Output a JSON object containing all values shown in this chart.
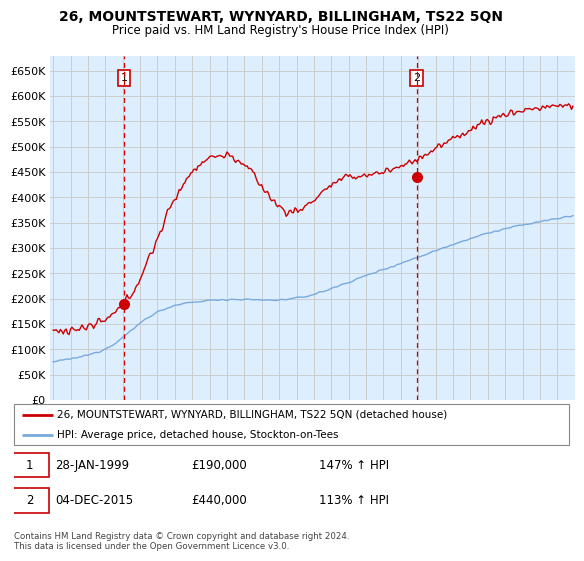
{
  "title": "26, MOUNTSTEWART, WYNYARD, BILLINGHAM, TS22 5QN",
  "subtitle": "Price paid vs. HM Land Registry's House Price Index (HPI)",
  "ylim": [
    0,
    680000
  ],
  "yticks": [
    0,
    50000,
    100000,
    150000,
    200000,
    250000,
    300000,
    350000,
    400000,
    450000,
    500000,
    550000,
    600000,
    650000
  ],
  "xlim_start": 1994.8,
  "xlim_end": 2025.0,
  "sale1_date": 1999.08,
  "sale1_price": 190000,
  "sale2_date": 2015.92,
  "sale2_price": 440000,
  "red_line_color": "#cc0000",
  "blue_line_color": "#7aaadd",
  "vline_color": "#cc0000",
  "marker_color": "#cc0000",
  "grid_color": "#cccccc",
  "background_color": "#ddeeff",
  "plot_bg_color": "#ddeeff",
  "legend_red_label": "26, MOUNTSTEWART, WYNYARD, BILLINGHAM, TS22 5QN (detached house)",
  "legend_blue_label": "HPI: Average price, detached house, Stockton-on-Tees",
  "footnote": "Contains HM Land Registry data © Crown copyright and database right 2024.\nThis data is licensed under the Open Government Licence v3.0."
}
